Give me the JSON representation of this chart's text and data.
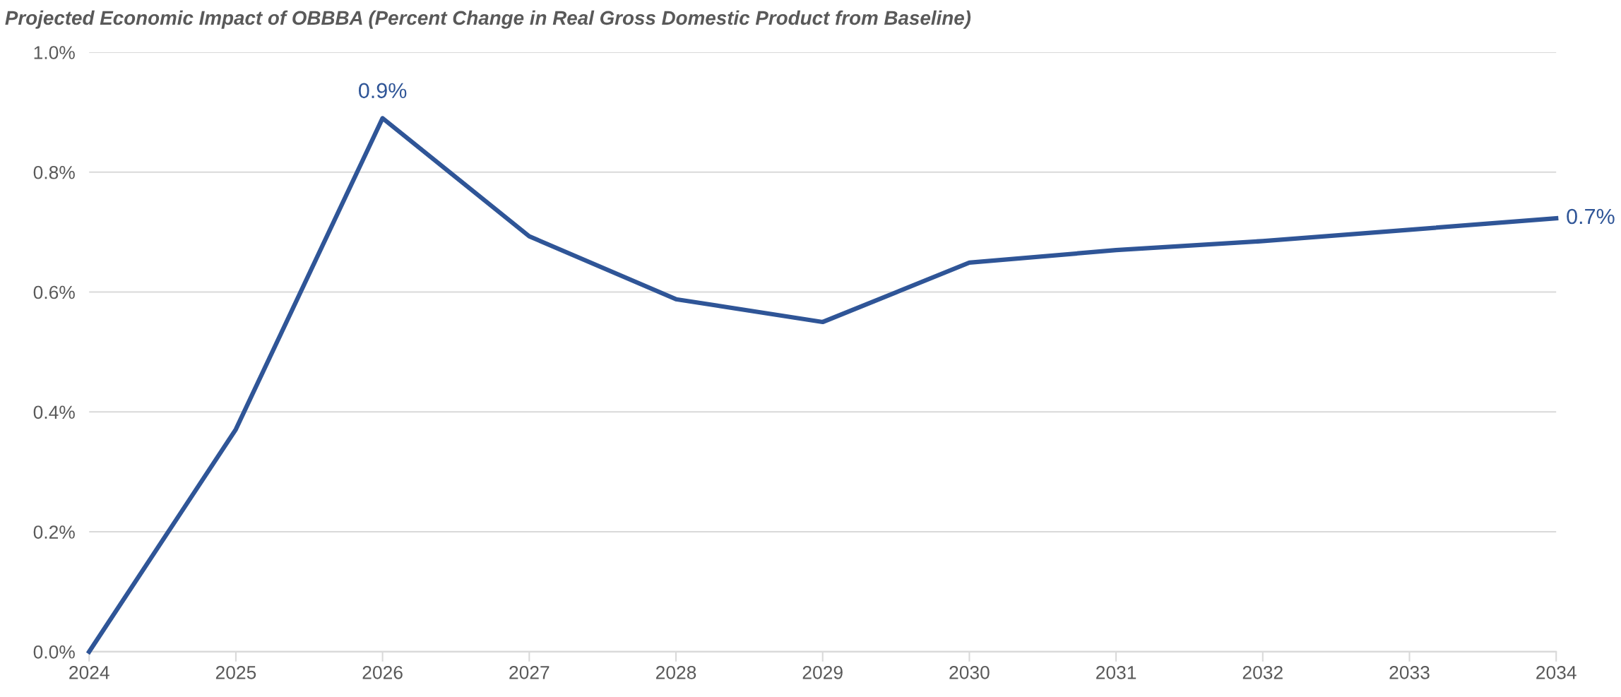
{
  "chart_data": {
    "type": "line",
    "title": "Projected Economic Impact of OBBBA (Percent Change in Real Gross Domestic Product from Baseline)",
    "x": [
      2024,
      2025,
      2026,
      2027,
      2028,
      2029,
      2030,
      2031,
      2032,
      2033,
      2034
    ],
    "series": [
      {
        "color": "#2f5597",
        "values": [
          0,
          0.371,
          0.89,
          0.693,
          0.588,
          0.55,
          0.649,
          0.67,
          0.685,
          0.704,
          0.723
        ],
        "value_labels": [
          null,
          null,
          "0.9%",
          null,
          null,
          null,
          null,
          null,
          null,
          null,
          "0.7%"
        ]
      }
    ],
    "xlim": [
      2024,
      2034
    ],
    "xticks": [
      2024,
      2025,
      2026,
      2027,
      2028,
      2029,
      2030,
      2031,
      2032,
      2033,
      2034
    ],
    "ylim": [
      0,
      1.0
    ],
    "yticks": [
      {
        "value": 0,
        "label": "0.0%"
      },
      {
        "value": 0.2,
        "label": "0.2%"
      },
      {
        "value": 0.4,
        "label": "0.4%"
      },
      {
        "value": 0.6,
        "label": "0.6%"
      },
      {
        "value": 0.8,
        "label": "0.8%"
      },
      {
        "value": 1.0,
        "label": "1.0%"
      }
    ],
    "grid": "y",
    "marker": "none",
    "line_style": "solid"
  }
}
